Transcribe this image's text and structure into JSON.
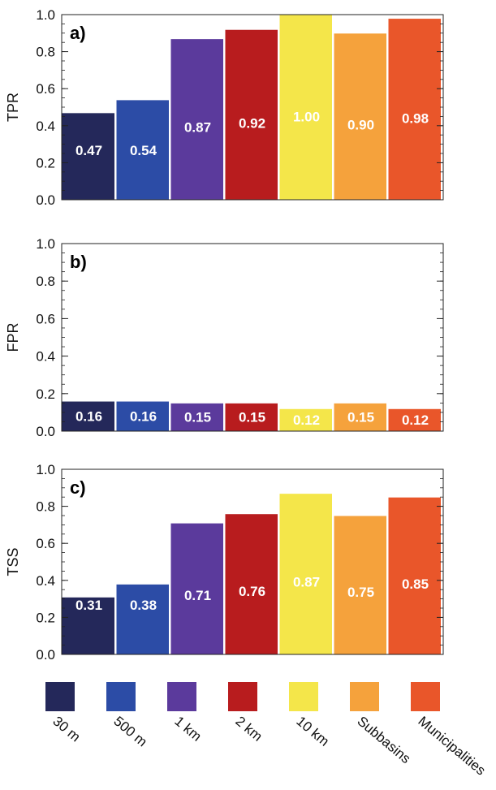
{
  "categories": [
    "30 m",
    "500 m",
    "1 km",
    "2 km",
    "10 km",
    "Subbasins",
    "Municipalities"
  ],
  "colors": [
    "#24285a",
    "#2c4ca6",
    "#5b3a9c",
    "#b81c1e",
    "#f4e64a",
    "#f5a23c",
    "#e9562a"
  ],
  "chart_data": [
    {
      "type": "bar",
      "panel": "a)",
      "ylabel": "TPR",
      "ylim": [
        0,
        1.0
      ],
      "yticks": [
        "0.0",
        "0.2",
        "0.4",
        "0.6",
        "0.8",
        "1.0"
      ],
      "categories": [
        "30 m",
        "500 m",
        "1 km",
        "2 km",
        "10 km",
        "Subbasins",
        "Municipalities"
      ],
      "values": [
        0.47,
        0.54,
        0.87,
        0.92,
        1.0,
        0.9,
        0.98
      ],
      "value_labels": [
        "0.47",
        "0.54",
        "0.87",
        "0.92",
        "1.00",
        "0.90",
        "0.98"
      ]
    },
    {
      "type": "bar",
      "panel": "b)",
      "ylabel": "FPR",
      "ylim": [
        0,
        1.0
      ],
      "yticks": [
        "0.0",
        "0.2",
        "0.4",
        "0.6",
        "0.8",
        "1.0"
      ],
      "categories": [
        "30 m",
        "500 m",
        "1 km",
        "2 km",
        "10 km",
        "Subbasins",
        "Municipalities"
      ],
      "values": [
        0.16,
        0.16,
        0.15,
        0.15,
        0.12,
        0.15,
        0.12
      ],
      "value_labels": [
        "0.16",
        "0.16",
        "0.15",
        "0.15",
        "0.12",
        "0.15",
        "0.12"
      ]
    },
    {
      "type": "bar",
      "panel": "c)",
      "ylabel": "TSS",
      "ylim": [
        0,
        1.0
      ],
      "yticks": [
        "0.0",
        "0.2",
        "0.4",
        "0.6",
        "0.8",
        "1.0"
      ],
      "categories": [
        "30 m",
        "500 m",
        "1 km",
        "2 km",
        "10 km",
        "Subbasins",
        "Municipalities"
      ],
      "values": [
        0.31,
        0.38,
        0.71,
        0.76,
        0.87,
        0.75,
        0.85
      ],
      "value_labels": [
        "0.31",
        "0.38",
        "0.71",
        "0.76",
        "0.87",
        "0.75",
        "0.85"
      ]
    }
  ]
}
